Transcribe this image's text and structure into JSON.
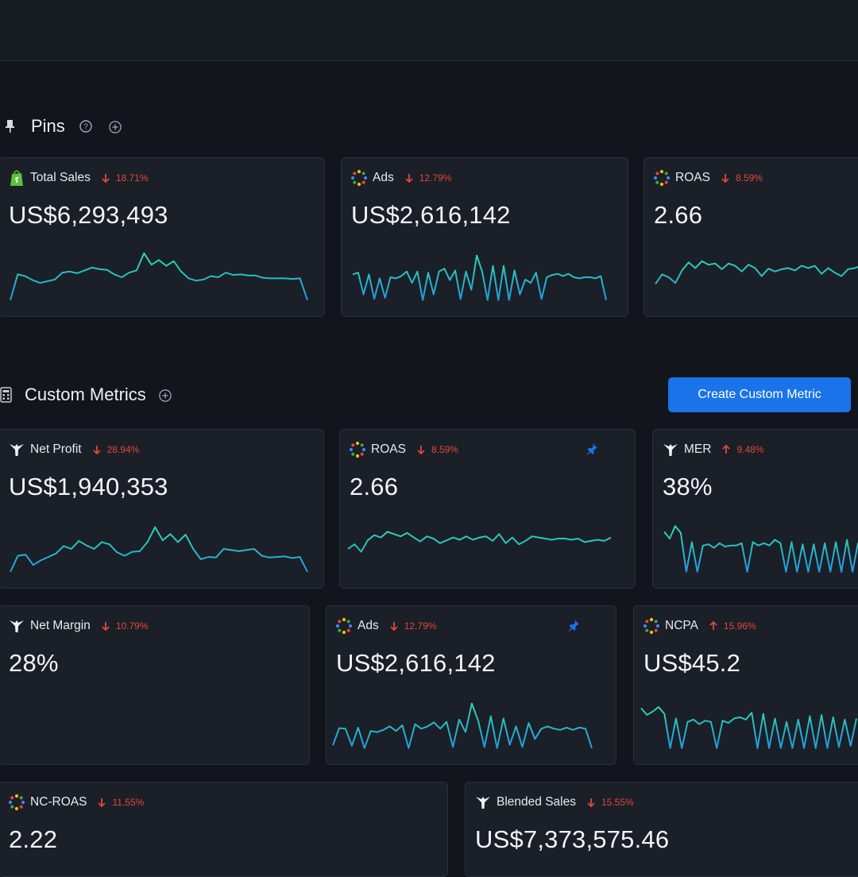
{
  "pins": {
    "title": "Pins",
    "cards": [
      {
        "name": "Total Sales",
        "source_icon": "shopify-icon",
        "trend": "down",
        "change": "18.71%",
        "value": "US$6,293,493"
      },
      {
        "name": "Ads",
        "source_icon": "ads-icon",
        "trend": "down",
        "change": "12.79%",
        "value": "US$2,616,142"
      },
      {
        "name": "ROAS",
        "source_icon": "ads-icon",
        "trend": "down",
        "change": "8.59%",
        "value": "2.66"
      }
    ]
  },
  "custom_metrics": {
    "title": "Custom Metrics",
    "create_button": "Create Custom Metric",
    "cards": [
      {
        "name": "Net Profit",
        "source_icon": "triple-whale-icon",
        "trend": "down",
        "change": "28.94%",
        "value": "US$1,940,353",
        "pinned": false
      },
      {
        "name": "ROAS",
        "source_icon": "ads-icon",
        "trend": "down",
        "change": "8.59%",
        "value": "2.66",
        "pinned": true
      },
      {
        "name": "MER",
        "source_icon": "triple-whale-icon",
        "trend": "up",
        "change": "9.48%",
        "value": "38%",
        "pinned": false
      },
      {
        "name": "Net Margin",
        "source_icon": "triple-whale-icon",
        "trend": "down",
        "change": "10.79%",
        "value": "28%",
        "pinned": false
      },
      {
        "name": "Ads",
        "source_icon": "ads-icon",
        "trend": "down",
        "change": "12.79%",
        "value": "US$2,616,142",
        "pinned": true
      },
      {
        "name": "NCPA",
        "source_icon": "ads-icon",
        "trend": "up",
        "change": "15.96%",
        "value": "US$45.2",
        "pinned": false
      },
      {
        "name": "NC-ROAS",
        "source_icon": "ads-icon",
        "trend": "down",
        "change": "11.55%",
        "value": "2.22",
        "pinned": false
      },
      {
        "name": "Blended Sales",
        "source_icon": "triple-whale-icon",
        "trend": "down",
        "change": "15.55%",
        "value": "US$7,373,575.46",
        "pinned": false
      }
    ]
  },
  "colors": {
    "accent": "#1a73e8",
    "negative": "#e0483a",
    "spark_top": "#2ee6a0",
    "spark_bottom": "#1f8fef"
  }
}
